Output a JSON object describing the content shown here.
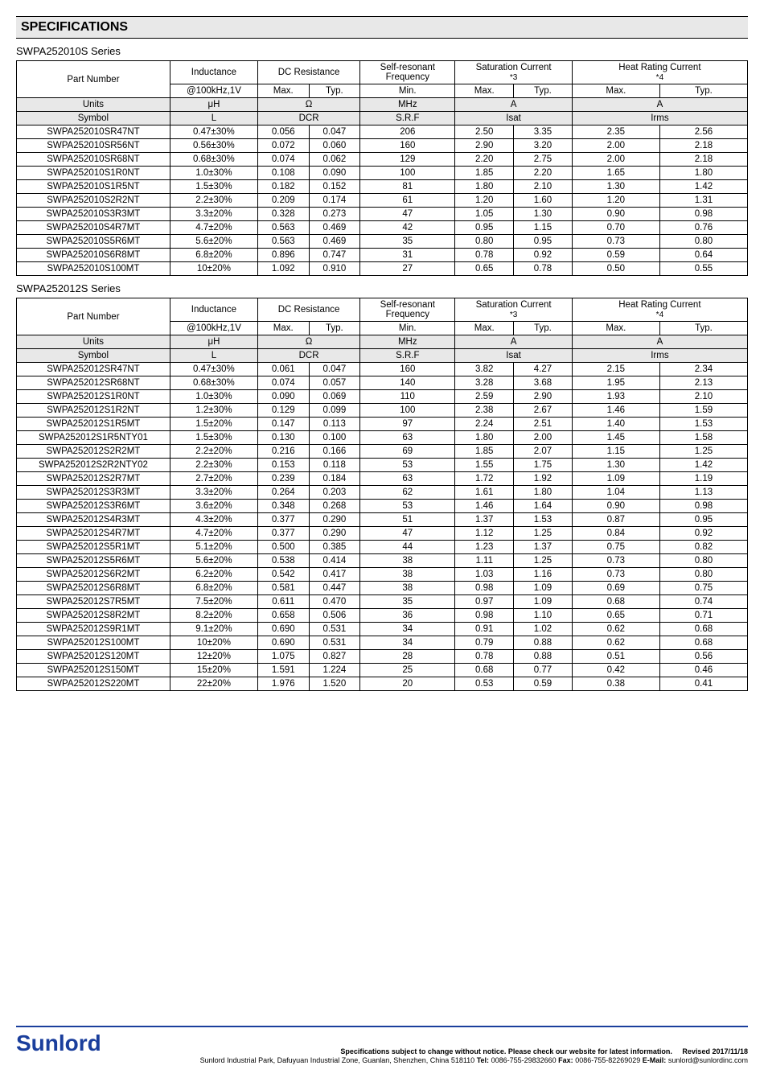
{
  "section_title": "SPECIFICATIONS",
  "series1": {
    "title": "SWPA252010S Series",
    "headers": {
      "part_number": "Part Number",
      "inductance": "Inductance",
      "dc_resistance": "DC Resistance",
      "srf": "Self-resonant Frequency",
      "sat": "Saturation Current",
      "sat_note": "*3",
      "irms": "Heat Rating Current",
      "irms_note": "*4",
      "cond": "@100kHz,1V",
      "max": "Max.",
      "typ": "Typ.",
      "min": "Min.",
      "units_label": "Units",
      "units_l": "μH",
      "units_dcr": "Ω",
      "units_srf": "MHz",
      "units_sat": "A",
      "units_irms": "A",
      "symbol_label": "Symbol",
      "symbol_l": "L",
      "symbol_dcr": "DCR",
      "symbol_srf": "S.R.F",
      "symbol_sat": "Isat",
      "symbol_irms": "Irms"
    },
    "rows": [
      {
        "pn": "SWPA252010SR47NT",
        "l": "0.47±30%",
        "dcrm": "0.056",
        "dcrt": "0.047",
        "srf": "206",
        "satm": "2.50",
        "satt": "3.35",
        "irm": "2.35",
        "irt": "2.56"
      },
      {
        "pn": "SWPA252010SR56NT",
        "l": "0.56±30%",
        "dcrm": "0.072",
        "dcrt": "0.060",
        "srf": "160",
        "satm": "2.90",
        "satt": "3.20",
        "irm": "2.00",
        "irt": "2.18"
      },
      {
        "pn": "SWPA252010SR68NT",
        "l": "0.68±30%",
        "dcrm": "0.074",
        "dcrt": "0.062",
        "srf": "129",
        "satm": "2.20",
        "satt": "2.75",
        "irm": "2.00",
        "irt": "2.18"
      },
      {
        "pn": "SWPA252010S1R0NT",
        "l": "1.0±30%",
        "dcrm": "0.108",
        "dcrt": "0.090",
        "srf": "100",
        "satm": "1.85",
        "satt": "2.20",
        "irm": "1.65",
        "irt": "1.80"
      },
      {
        "pn": "SWPA252010S1R5NT",
        "l": "1.5±30%",
        "dcrm": "0.182",
        "dcrt": "0.152",
        "srf": "81",
        "satm": "1.80",
        "satt": "2.10",
        "irm": "1.30",
        "irt": "1.42"
      },
      {
        "pn": "SWPA252010S2R2NT",
        "l": "2.2±30%",
        "dcrm": "0.209",
        "dcrt": "0.174",
        "srf": "61",
        "satm": "1.20",
        "satt": "1.60",
        "irm": "1.20",
        "irt": "1.31"
      },
      {
        "pn": "SWPA252010S3R3MT",
        "l": "3.3±20%",
        "dcrm": "0.328",
        "dcrt": "0.273",
        "srf": "47",
        "satm": "1.05",
        "satt": "1.30",
        "irm": "0.90",
        "irt": "0.98"
      },
      {
        "pn": "SWPA252010S4R7MT",
        "l": "4.7±20%",
        "dcrm": "0.563",
        "dcrt": "0.469",
        "srf": "42",
        "satm": "0.95",
        "satt": "1.15",
        "irm": "0.70",
        "irt": "0.76"
      },
      {
        "pn": "SWPA252010S5R6MT",
        "l": "5.6±20%",
        "dcrm": "0.563",
        "dcrt": "0.469",
        "srf": "35",
        "satm": "0.80",
        "satt": "0.95",
        "irm": "0.73",
        "irt": "0.80"
      },
      {
        "pn": "SWPA252010S6R8MT",
        "l": "6.8±20%",
        "dcrm": "0.896",
        "dcrt": "0.747",
        "srf": "31",
        "satm": "0.78",
        "satt": "0.92",
        "irm": "0.59",
        "irt": "0.64"
      },
      {
        "pn": "SWPA252010S100MT",
        "l": "10±20%",
        "dcrm": "1.092",
        "dcrt": "0.910",
        "srf": "27",
        "satm": "0.65",
        "satt": "0.78",
        "irm": "0.50",
        "irt": "0.55"
      }
    ]
  },
  "series2": {
    "title": "SWPA252012S Series",
    "rows": [
      {
        "pn": "SWPA252012SR47NT",
        "l": "0.47±30%",
        "dcrm": "0.061",
        "dcrt": "0.047",
        "srf": "160",
        "satm": "3.82",
        "satt": "4.27",
        "irm": "2.15",
        "irt": "2.34"
      },
      {
        "pn": "SWPA252012SR68NT",
        "l": "0.68±30%",
        "dcrm": "0.074",
        "dcrt": "0.057",
        "srf": "140",
        "satm": "3.28",
        "satt": "3.68",
        "irm": "1.95",
        "irt": "2.13"
      },
      {
        "pn": "SWPA252012S1R0NT",
        "l": "1.0±30%",
        "dcrm": "0.090",
        "dcrt": "0.069",
        "srf": "110",
        "satm": "2.59",
        "satt": "2.90",
        "irm": "1.93",
        "irt": "2.10"
      },
      {
        "pn": "SWPA252012S1R2NT",
        "l": "1.2±30%",
        "dcrm": "0.129",
        "dcrt": "0.099",
        "srf": "100",
        "satm": "2.38",
        "satt": "2.67",
        "irm": "1.46",
        "irt": "1.59"
      },
      {
        "pn": "SWPA252012S1R5MT",
        "l": "1.5±20%",
        "dcrm": "0.147",
        "dcrt": "0.113",
        "srf": "97",
        "satm": "2.24",
        "satt": "2.51",
        "irm": "1.40",
        "irt": "1.53"
      },
      {
        "pn": "SWPA252012S1R5NTY01",
        "l": "1.5±30%",
        "dcrm": "0.130",
        "dcrt": "0.100",
        "srf": "63",
        "satm": "1.80",
        "satt": "2.00",
        "irm": "1.45",
        "irt": "1.58"
      },
      {
        "pn": "SWPA252012S2R2MT",
        "l": "2.2±20%",
        "dcrm": "0.216",
        "dcrt": "0.166",
        "srf": "69",
        "satm": "1.85",
        "satt": "2.07",
        "irm": "1.15",
        "irt": "1.25"
      },
      {
        "pn": "SWPA252012S2R2NTY02",
        "l": "2.2±30%",
        "dcrm": "0.153",
        "dcrt": "0.118",
        "srf": "53",
        "satm": "1.55",
        "satt": "1.75",
        "irm": "1.30",
        "irt": "1.42"
      },
      {
        "pn": "SWPA252012S2R7MT",
        "l": "2.7±20%",
        "dcrm": "0.239",
        "dcrt": "0.184",
        "srf": "63",
        "satm": "1.72",
        "satt": "1.92",
        "irm": "1.09",
        "irt": "1.19"
      },
      {
        "pn": "SWPA252012S3R3MT",
        "l": "3.3±20%",
        "dcrm": "0.264",
        "dcrt": "0.203",
        "srf": "62",
        "satm": "1.61",
        "satt": "1.80",
        "irm": "1.04",
        "irt": "1.13"
      },
      {
        "pn": "SWPA252012S3R6MT",
        "l": "3.6±20%",
        "dcrm": "0.348",
        "dcrt": "0.268",
        "srf": "53",
        "satm": "1.46",
        "satt": "1.64",
        "irm": "0.90",
        "irt": "0.98"
      },
      {
        "pn": "SWPA252012S4R3MT",
        "l": "4.3±20%",
        "dcrm": "0.377",
        "dcrt": "0.290",
        "srf": "51",
        "satm": "1.37",
        "satt": "1.53",
        "irm": "0.87",
        "irt": "0.95"
      },
      {
        "pn": "SWPA252012S4R7MT",
        "l": "4.7±20%",
        "dcrm": "0.377",
        "dcrt": "0.290",
        "srf": "47",
        "satm": "1.12",
        "satt": "1.25",
        "irm": "0.84",
        "irt": "0.92"
      },
      {
        "pn": "SWPA252012S5R1MT",
        "l": "5.1±20%",
        "dcrm": "0.500",
        "dcrt": "0.385",
        "srf": "44",
        "satm": "1.23",
        "satt": "1.37",
        "irm": "0.75",
        "irt": "0.82"
      },
      {
        "pn": "SWPA252012S5R6MT",
        "l": "5.6±20%",
        "dcrm": "0.538",
        "dcrt": "0.414",
        "srf": "38",
        "satm": "1.11",
        "satt": "1.25",
        "irm": "0.73",
        "irt": "0.80"
      },
      {
        "pn": "SWPA252012S6R2MT",
        "l": "6.2±20%",
        "dcrm": "0.542",
        "dcrt": "0.417",
        "srf": "38",
        "satm": "1.03",
        "satt": "1.16",
        "irm": "0.73",
        "irt": "0.80"
      },
      {
        "pn": "SWPA252012S6R8MT",
        "l": "6.8±20%",
        "dcrm": "0.581",
        "dcrt": "0.447",
        "srf": "38",
        "satm": "0.98",
        "satt": "1.09",
        "irm": "0.69",
        "irt": "0.75"
      },
      {
        "pn": "SWPA252012S7R5MT",
        "l": "7.5±20%",
        "dcrm": "0.611",
        "dcrt": "0.470",
        "srf": "35",
        "satm": "0.97",
        "satt": "1.09",
        "irm": "0.68",
        "irt": "0.74"
      },
      {
        "pn": "SWPA252012S8R2MT",
        "l": "8.2±20%",
        "dcrm": "0.658",
        "dcrt": "0.506",
        "srf": "36",
        "satm": "0.98",
        "satt": "1.10",
        "irm": "0.65",
        "irt": "0.71"
      },
      {
        "pn": "SWPA252012S9R1MT",
        "l": "9.1±20%",
        "dcrm": "0.690",
        "dcrt": "0.531",
        "srf": "34",
        "satm": "0.91",
        "satt": "1.02",
        "irm": "0.62",
        "irt": "0.68"
      },
      {
        "pn": "SWPA252012S100MT",
        "l": "10±20%",
        "dcrm": "0.690",
        "dcrt": "0.531",
        "srf": "34",
        "satm": "0.79",
        "satt": "0.88",
        "irm": "0.62",
        "irt": "0.68"
      },
      {
        "pn": "SWPA252012S120MT",
        "l": "12±20%",
        "dcrm": "1.075",
        "dcrt": "0.827",
        "srf": "28",
        "satm": "0.78",
        "satt": "0.88",
        "irm": "0.51",
        "irt": "0.56"
      },
      {
        "pn": "SWPA252012S150MT",
        "l": "15±20%",
        "dcrm": "1.591",
        "dcrt": "1.224",
        "srf": "25",
        "satm": "0.68",
        "satt": "0.77",
        "irm": "0.42",
        "irt": "0.46"
      },
      {
        "pn": "SWPA252012S220MT",
        "l": "22±20%",
        "dcrm": "1.976",
        "dcrt": "1.520",
        "srf": "20",
        "satm": "0.53",
        "satt": "0.59",
        "irm": "0.38",
        "irt": "0.41"
      }
    ]
  },
  "footer": {
    "logo": "Sunlord",
    "notice": "Specifications subject to change without notice. Please check our website for latest information.",
    "revised": "Revised 2017/11/18",
    "address": "Sunlord Industrial Park, Dafuyuan Industrial Zone, Guanlan, Shenzhen, China 518110",
    "tel_label": "Tel:",
    "tel": "0086-755-29832660",
    "fax_label": "Fax:",
    "fax": "0086-755-82269029",
    "email_label": "E-Mail:",
    "email": "sunlord@sunlordinc.com"
  }
}
